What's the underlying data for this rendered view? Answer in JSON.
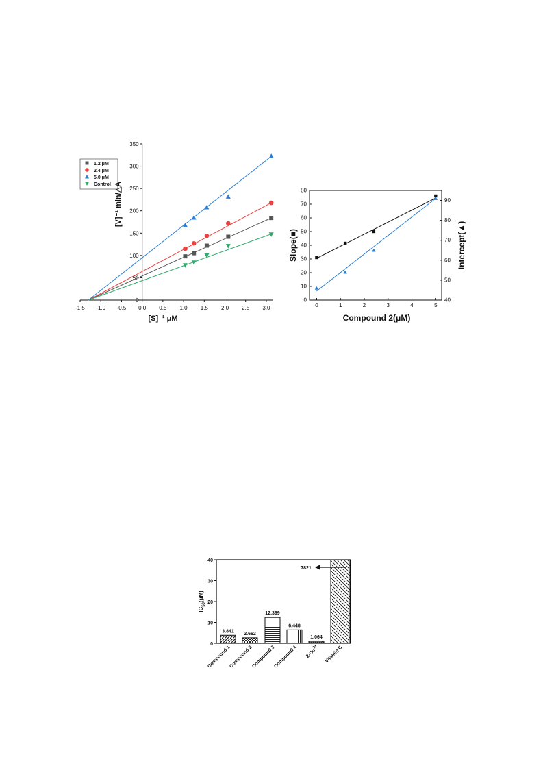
{
  "chart_data": [
    {
      "type": "scatter",
      "xlabel": "[S]⁻¹ μM",
      "ylabel": "[V]⁻¹ min/△A",
      "xticks": [
        "-1.5",
        "-1.0",
        "-0.5",
        "0.0",
        "0.5",
        "1.0",
        "1.5",
        "2.0",
        "2.5",
        "3.0"
      ],
      "yticks": [
        "0",
        "50",
        "100",
        "150",
        "200",
        "250",
        "300",
        "350"
      ],
      "xlim": [
        -1.5,
        3.15
      ],
      "ylim": [
        0,
        350
      ],
      "legend_position": "top-left",
      "series": [
        {
          "name": "1.2 μM",
          "marker": "square",
          "color": "#555555",
          "x": [
            1.04,
            1.25,
            1.56,
            2.08,
            3.12
          ],
          "y": [
            98,
            105,
            122,
            142,
            184
          ],
          "fit": {
            "x": [
              -1.3,
              3.12
            ],
            "y": [
              0,
              184
            ]
          }
        },
        {
          "name": "2.4 μM",
          "marker": "circle",
          "color": "#e8413e",
          "x": [
            1.04,
            1.25,
            1.56,
            2.08,
            3.12
          ],
          "y": [
            115,
            127,
            144,
            172,
            218
          ],
          "fit": {
            "x": [
              -1.3,
              3.12
            ],
            "y": [
              0,
              218
            ]
          }
        },
        {
          "name": "5.0 μM",
          "marker": "triangle-up",
          "color": "#2a7fd4",
          "x": [
            1.04,
            1.25,
            1.56,
            2.08,
            3.12
          ],
          "y": [
            168,
            185,
            208,
            232,
            323
          ],
          "fit": {
            "x": [
              -1.3,
              3.12
            ],
            "y": [
              0,
              322
            ]
          }
        },
        {
          "name": "Control",
          "marker": "triangle-down",
          "color": "#2faa6b",
          "x": [
            1.04,
            1.25,
            1.56,
            2.08,
            3.12
          ],
          "y": [
            78,
            84,
            100,
            121,
            147
          ],
          "fit": {
            "x": [
              -1.3,
              3.12
            ],
            "y": [
              0,
              148
            ]
          }
        }
      ]
    },
    {
      "type": "scatter",
      "xlabel": "Compound 2(μM)",
      "ylabel": "Slope(■)",
      "y2label": "Intercept(▲)",
      "xticks": [
        "0",
        "1",
        "2",
        "3",
        "4",
        "5"
      ],
      "yticks": [
        "0",
        "10",
        "20",
        "30",
        "40",
        "50",
        "60",
        "70",
        "80"
      ],
      "y2ticks": [
        "40",
        "50",
        "60",
        "70",
        "80",
        "90"
      ],
      "xlim": [
        -0.3,
        5.25
      ],
      "ylim": [
        0,
        80
      ],
      "y2lim": [
        40,
        95
      ],
      "series": [
        {
          "name": "Slope",
          "marker": "square",
          "color": "#111111",
          "axis": "left",
          "x": [
            0,
            1.2,
            2.4,
            5.0
          ],
          "y": [
            31,
            41.5,
            50,
            76
          ],
          "fit": {
            "x": [
              0,
              5.0
            ],
            "y": [
              30.5,
              74.5
            ]
          }
        },
        {
          "name": "Intercept",
          "marker": "triangle-up",
          "color": "#2a7fd4",
          "axis": "right",
          "x": [
            0,
            1.2,
            2.4,
            5.0
          ],
          "y": [
            46,
            54,
            65,
            91
          ],
          "fit": {
            "x": [
              0,
              5.0
            ],
            "y": [
              44.5,
              91
            ]
          }
        }
      ]
    },
    {
      "type": "bar",
      "ylabel": "IC50(μM)",
      "ylim": [
        0,
        40
      ],
      "yticks": [
        "0",
        "10",
        "20",
        "30",
        "40"
      ],
      "categories": [
        "Compound 1",
        "Compound 2",
        "Compound 3",
        "Compound 4",
        "2-Cu2+",
        "Vitamin C"
      ],
      "values": [
        3.841,
        2.662,
        12.399,
        6.448,
        1.064,
        7821
      ],
      "value_labels": [
        "3.841",
        "2.662",
        "12.399",
        "6.448",
        "1.064",
        "7821"
      ],
      "offscale_label_color": "#d23a2a"
    }
  ]
}
